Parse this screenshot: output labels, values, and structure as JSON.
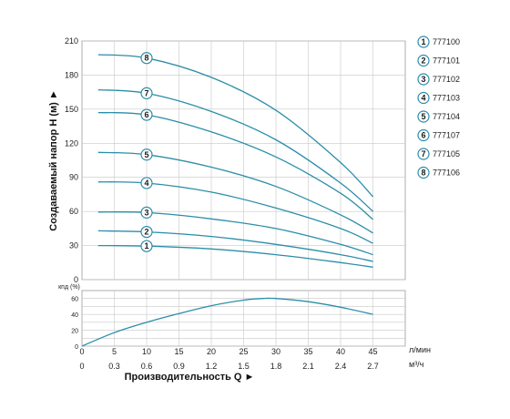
{
  "chart_data": [
    {
      "type": "line",
      "ylabel": "Создаваемый напор H (м) ►",
      "ylim": [
        0,
        210
      ],
      "y_ticks": [
        "0",
        "30",
        "60",
        "90",
        "120",
        "150",
        "180",
        "210"
      ],
      "xlim": [
        0,
        50
      ],
      "grid": true,
      "legend": {
        "placement": "right",
        "entries": [
          {
            "marker": "1",
            "label": "777100"
          },
          {
            "marker": "2",
            "label": "777101"
          },
          {
            "marker": "3",
            "label": "777102"
          },
          {
            "marker": "4",
            "label": "777103"
          },
          {
            "marker": "5",
            "label": "777104"
          },
          {
            "marker": "6",
            "label": "777107"
          },
          {
            "marker": "7",
            "label": "777105"
          },
          {
            "marker": "8",
            "label": "777106"
          }
        ]
      },
      "color": "#2a8ea8",
      "series": [
        {
          "marker": "1",
          "x": [
            2.5,
            10,
            20,
            30,
            40,
            45
          ],
          "y": [
            30,
            29.5,
            27,
            22,
            15,
            11
          ]
        },
        {
          "marker": "2",
          "x": [
            2.5,
            10,
            20,
            30,
            40,
            45
          ],
          "y": [
            43,
            42,
            38,
            31,
            22,
            16
          ]
        },
        {
          "marker": "3",
          "x": [
            2.5,
            10,
            20,
            30,
            40,
            45
          ],
          "y": [
            59.5,
            59,
            53.5,
            45,
            31,
            22
          ]
        },
        {
          "marker": "4",
          "x": [
            2.5,
            10,
            20,
            30,
            40,
            45
          ],
          "y": [
            86,
            85,
            77,
            63,
            45,
            32
          ]
        },
        {
          "marker": "5",
          "x": [
            2.5,
            10,
            20,
            30,
            40,
            45
          ],
          "y": [
            112,
            110,
            99,
            82,
            57,
            41
          ]
        },
        {
          "marker": "6",
          "x": [
            2.5,
            10,
            20,
            30,
            40,
            45
          ],
          "y": [
            147,
            145,
            130,
            108,
            76,
            53
          ]
        },
        {
          "marker": "7",
          "x": [
            2.5,
            10,
            20,
            30,
            40,
            45
          ],
          "y": [
            167,
            164,
            148,
            123,
            85,
            60
          ]
        },
        {
          "marker": "8",
          "x": [
            2.5,
            10,
            20,
            30,
            40,
            45
          ],
          "y": [
            198,
            195,
            178,
            149,
            103,
            73
          ]
        }
      ],
      "marker_x": 10
    },
    {
      "type": "line",
      "ylabel": "кпд (%)",
      "ylim": [
        0,
        70
      ],
      "y_ticks": [
        "0",
        "20",
        "40",
        "60"
      ],
      "x_ticks_primary": [
        "0",
        "5",
        "10",
        "15",
        "20",
        "25",
        "30",
        "35",
        "40",
        "45"
      ],
      "x_unit_primary": "л/мин",
      "x_ticks_secondary": [
        "0",
        "0.3",
        "0.6",
        "0.9",
        "1.2",
        "1.5",
        "1.8",
        "2.1",
        "2.4",
        "2.7"
      ],
      "x_unit_secondary": "м³/ч",
      "xlabel": "Производительность Q ►",
      "xlim": [
        0,
        50
      ],
      "grid": true,
      "series": [
        {
          "x": [
            0,
            5,
            10,
            15,
            20,
            25,
            28,
            30,
            35,
            40,
            45
          ],
          "y": [
            0,
            17,
            30,
            41,
            51,
            58,
            60,
            60,
            56,
            49,
            40
          ]
        }
      ]
    }
  ]
}
